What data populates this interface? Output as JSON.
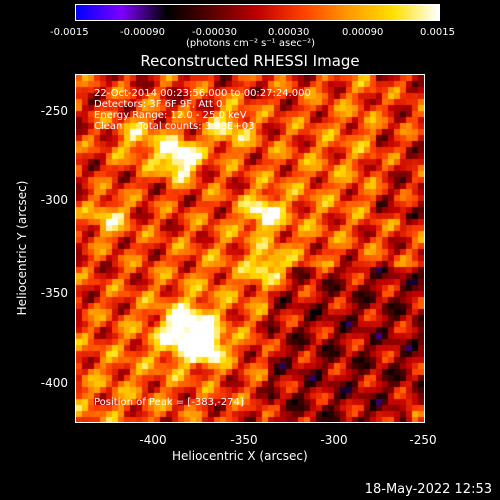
{
  "colorbar": {
    "tick_labels": [
      "-0.0015",
      "-0.00090",
      "-0.00030",
      "0.00030",
      "0.00090",
      "0.0015"
    ],
    "units": "(photons cm⁻² s⁻¹ asec⁻²)",
    "range": [
      -0.0015,
      0.0015
    ],
    "colors": [
      "#0000ff",
      "#7f00ff",
      "#000000",
      "#5a0000",
      "#c00000",
      "#ff4000",
      "#ff9900",
      "#ffe000",
      "#ffffff"
    ]
  },
  "image": {
    "title": "Reconstructed RHESSI Image",
    "info_lines": [
      "22-Oct-2014 00:23:56.000 to 00:27:24.000",
      "Detectors: 3F 6F 9F, Att 0",
      "Energy Range: 12.0 - 25.0 keV",
      "Clean     Total counts: 3.08E+03"
    ],
    "peak_label": "Position of Peak = [-383,-274]",
    "x_label": "Heliocentric X (arcsec)",
    "y_label": "Heliocentric Y (arcsec)",
    "x_ticks": [
      "-400",
      "-350",
      "-300",
      "-250"
    ],
    "y_ticks": [
      "-250",
      "-300",
      "-350",
      "-400"
    ],
    "x_range": [
      -443,
      -250
    ],
    "y_range": [
      -422,
      -229
    ]
  },
  "footer": {
    "timestamp": "18-May-2022 12:53"
  }
}
